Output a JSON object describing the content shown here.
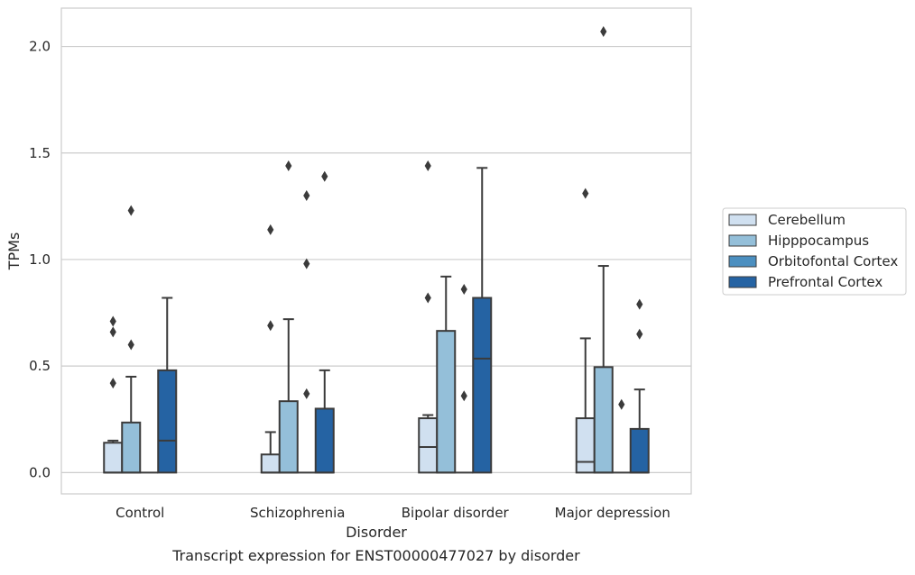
{
  "chart_data": {
    "type": "box",
    "caption": "Transcript expression for ENST00000477027 by disorder",
    "xlabel": "Disorder",
    "ylabel": "TPMs",
    "ylim": [
      -0.1,
      2.18
    ],
    "yticks": [
      0.0,
      0.5,
      1.0,
      1.5,
      2.0
    ],
    "ytick_labels": [
      "0.0",
      "0.5",
      "1.0",
      "1.5",
      "2.0"
    ],
    "grid": "horizontal",
    "legend_position": "right",
    "categories": [
      "Control",
      "Schizophrenia",
      "Bipolar disorder",
      "Major depression"
    ],
    "series": [
      {
        "name": "Cerebellum",
        "color": "#d0e0f0",
        "boxes": [
          {
            "q1": 0.0,
            "median": 0.0,
            "q3": 0.14,
            "whisker_low": 0.0,
            "whisker_high": 0.15,
            "outliers": [
              0.42,
              0.66,
              0.71
            ]
          },
          {
            "q1": 0.0,
            "median": 0.0,
            "q3": 0.085,
            "whisker_low": 0.0,
            "whisker_high": 0.19,
            "outliers": [
              0.69,
              1.14
            ]
          },
          {
            "q1": 0.0,
            "median": 0.12,
            "q3": 0.255,
            "whisker_low": 0.0,
            "whisker_high": 0.27,
            "outliers": [
              0.82,
              1.44
            ]
          },
          {
            "q1": 0.0,
            "median": 0.05,
            "q3": 0.255,
            "whisker_low": 0.0,
            "whisker_high": 0.63,
            "outliers": [
              1.31
            ]
          }
        ]
      },
      {
        "name": "Hipppocampus",
        "color": "#94bfd9",
        "boxes": [
          {
            "q1": 0.0,
            "median": 0.0,
            "q3": 0.235,
            "whisker_low": 0.0,
            "whisker_high": 0.45,
            "outliers": [
              0.6,
              1.23
            ]
          },
          {
            "q1": 0.0,
            "median": 0.0,
            "q3": 0.335,
            "whisker_low": 0.0,
            "whisker_high": 0.72,
            "outliers": [
              1.44
            ]
          },
          {
            "q1": 0.0,
            "median": 0.0,
            "q3": 0.665,
            "whisker_low": 0.0,
            "whisker_high": 0.92,
            "outliers": []
          },
          {
            "q1": 0.0,
            "median": 0.0,
            "q3": 0.495,
            "whisker_low": 0.0,
            "whisker_high": 0.97,
            "outliers": [
              2.07
            ]
          }
        ]
      },
      {
        "name": "Orbitofontal Cortex",
        "color": "#4b8fc0",
        "boxes": [
          {
            "q1": 0.0,
            "median": 0.0,
            "q3": 0.0,
            "whisker_low": 0.0,
            "whisker_high": 0.0,
            "outliers": []
          },
          {
            "q1": 0.0,
            "median": 0.0,
            "q3": 0.0,
            "whisker_low": 0.0,
            "whisker_high": 0.0,
            "outliers": [
              0.37,
              0.98,
              1.3
            ]
          },
          {
            "q1": 0.0,
            "median": 0.0,
            "q3": 0.0,
            "whisker_low": 0.0,
            "whisker_high": 0.0,
            "outliers": [
              0.36,
              0.86
            ]
          },
          {
            "q1": 0.0,
            "median": 0.0,
            "q3": 0.0,
            "whisker_low": 0.0,
            "whisker_high": 0.0,
            "outliers": [
              0.32
            ]
          }
        ]
      },
      {
        "name": "Prefrontal Cortex",
        "color": "#2563a3",
        "boxes": [
          {
            "q1": 0.0,
            "median": 0.15,
            "q3": 0.48,
            "whisker_low": 0.0,
            "whisker_high": 0.82,
            "outliers": []
          },
          {
            "q1": 0.0,
            "median": 0.0,
            "q3": 0.3,
            "whisker_low": 0.0,
            "whisker_high": 0.48,
            "outliers": [
              1.39
            ]
          },
          {
            "q1": 0.0,
            "median": 0.535,
            "q3": 0.82,
            "whisker_low": 0.0,
            "whisker_high": 1.43,
            "outliers": []
          },
          {
            "q1": 0.0,
            "median": 0.0,
            "q3": 0.205,
            "whisker_low": 0.0,
            "whisker_high": 0.39,
            "outliers": [
              0.65,
              0.79
            ]
          }
        ]
      }
    ]
  }
}
